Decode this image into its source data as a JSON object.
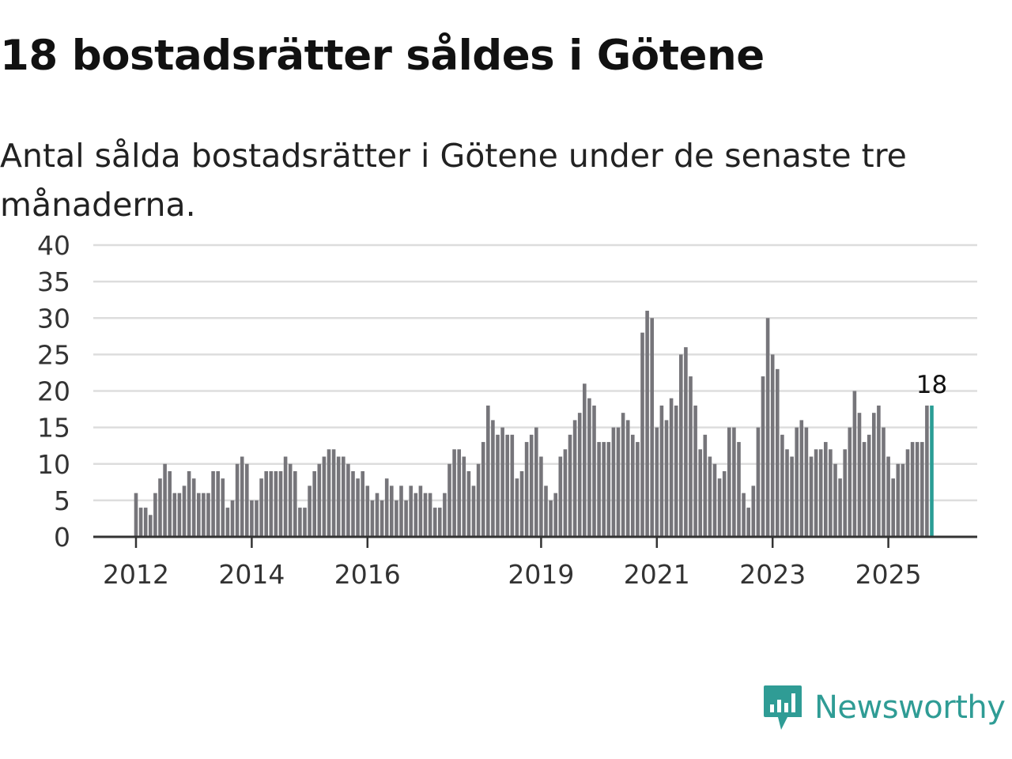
{
  "header": {
    "title": "18 bostadsrätter såldes i Götene",
    "subtitle": "Antal sålda bostadsrätter i Götene under de senaste tre månaderna."
  },
  "brand": {
    "name": "Newsworthy"
  },
  "colors": {
    "bar": "#76757a",
    "highlight": "#2a9d95",
    "grid": "#dddddd",
    "axis": "#333333",
    "brand": "#2f9c95"
  },
  "chart_data": {
    "type": "bar",
    "title": "18 bostadsrätter såldes i Götene",
    "subtitle": "Antal sålda bostadsrätter i Götene under de senaste tre månaderna.",
    "xlabel": "",
    "ylabel": "",
    "ylim": [
      0,
      40
    ],
    "yticks": [
      0,
      5,
      10,
      15,
      20,
      25,
      30,
      35,
      40
    ],
    "xticks": [
      "2012",
      "2014",
      "2016",
      "2019",
      "2021",
      "2023",
      "2025"
    ],
    "grid": true,
    "start": "2012-01",
    "values": [
      6,
      4,
      4,
      3,
      6,
      8,
      10,
      9,
      6,
      6,
      7,
      9,
      8,
      6,
      6,
      6,
      9,
      9,
      8,
      4,
      5,
      10,
      11,
      10,
      5,
      5,
      8,
      9,
      9,
      9,
      9,
      11,
      10,
      9,
      4,
      4,
      7,
      9,
      10,
      11,
      12,
      12,
      11,
      11,
      10,
      9,
      8,
      9,
      7,
      5,
      6,
      5,
      8,
      7,
      5,
      7,
      5,
      7,
      6,
      7,
      6,
      6,
      4,
      4,
      6,
      10,
      12,
      12,
      11,
      9,
      7,
      10,
      13,
      18,
      16,
      14,
      15,
      14,
      14,
      8,
      9,
      13,
      14,
      15,
      11,
      7,
      5,
      6,
      11,
      12,
      14,
      16,
      17,
      21,
      19,
      18,
      13,
      13,
      13,
      15,
      15,
      17,
      16,
      14,
      13,
      28,
      31,
      30,
      15,
      18,
      16,
      19,
      18,
      25,
      26,
      22,
      18,
      12,
      14,
      11,
      10,
      8,
      9,
      15,
      15,
      13,
      6,
      4,
      7,
      15,
      22,
      30,
      25,
      23,
      14,
      12,
      11,
      15,
      16,
      15,
      11,
      12,
      12,
      13,
      12,
      10,
      8,
      12,
      15,
      20,
      17,
      13,
      14,
      17,
      18,
      15,
      11,
      8,
      10,
      10,
      12,
      13,
      13,
      13,
      18,
      18
    ],
    "highlight_label": "18"
  }
}
